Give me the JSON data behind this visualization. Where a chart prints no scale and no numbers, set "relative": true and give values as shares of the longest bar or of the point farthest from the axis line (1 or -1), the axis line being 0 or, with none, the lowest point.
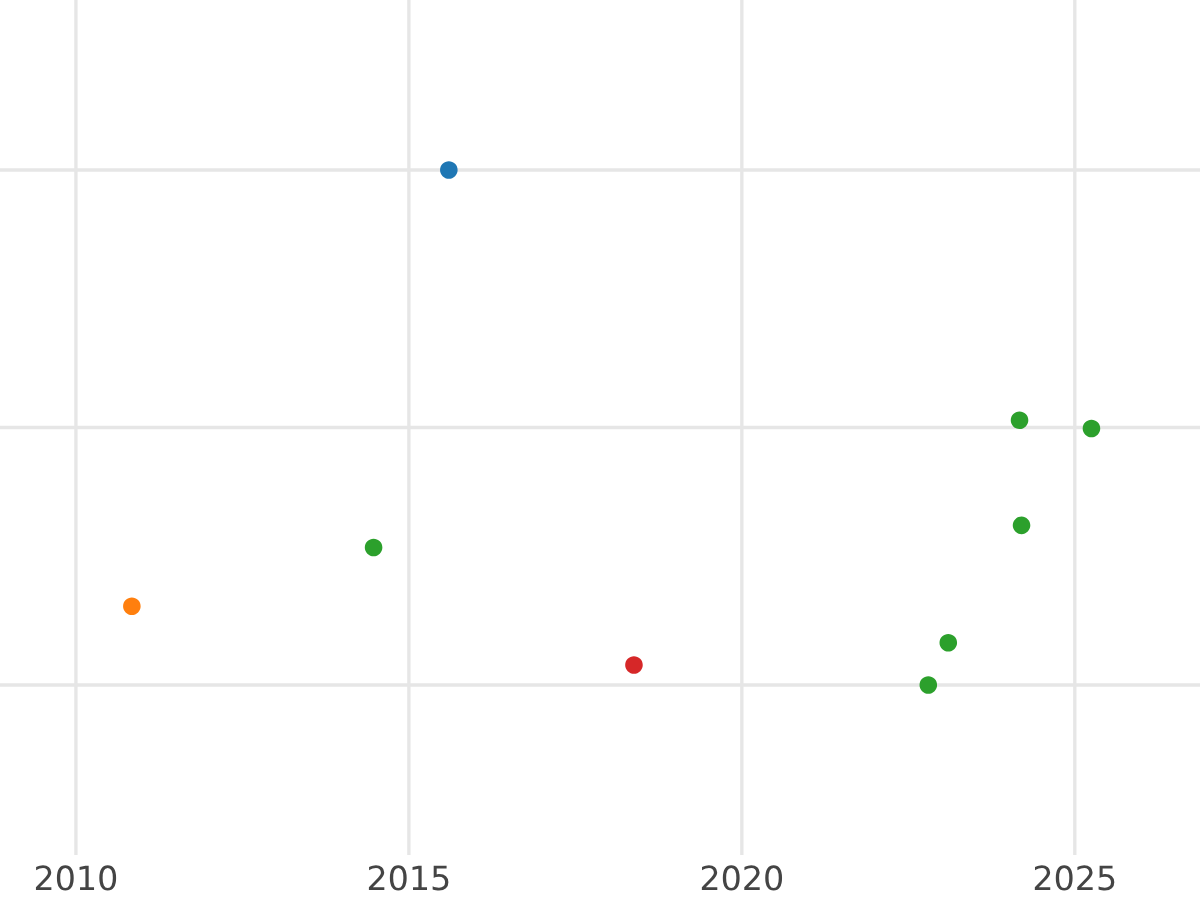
{
  "chart_data": {
    "type": "scatter",
    "relative": true,
    "x": [
      2015.6,
      2010.84,
      2014.47,
      2018.38,
      2024.17,
      2025.25,
      2024.2,
      2023.1,
      2022.8
    ],
    "values": [
      1.0,
      0.153,
      0.267,
      0.039,
      0.514,
      0.498,
      0.31,
      0.082,
      0.0
    ],
    "colors": [
      "#1f77b4",
      "#ff7f0e",
      "#2ca02c",
      "#d62728",
      "#2ca02c",
      "#2ca02c",
      "#2ca02c",
      "#2ca02c",
      "#2ca02c"
    ],
    "xlim": [
      2008.86,
      2026.88
    ],
    "xticks": [
      2010,
      2015,
      2020,
      2025
    ],
    "marker": "circle",
    "grid": true,
    "tick_labels": "x"
  }
}
